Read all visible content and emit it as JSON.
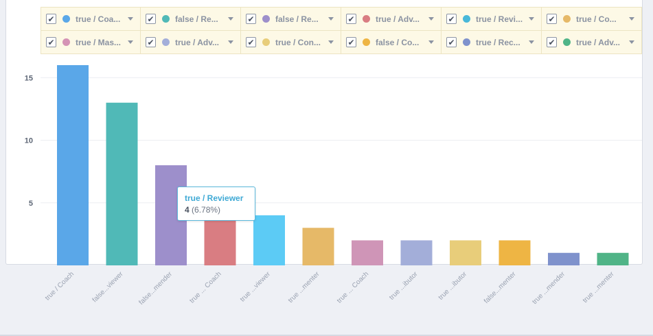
{
  "legend": {
    "items": [
      {
        "label": "true / Coa...",
        "color": "#5aa7e8"
      },
      {
        "label": "false / Re...",
        "color": "#50b9b7"
      },
      {
        "label": "false / Re...",
        "color": "#9d8fcb"
      },
      {
        "label": "true / Adv...",
        "color": "#d97d82"
      },
      {
        "label": "true / Revi...",
        "color": "#48b8d9"
      },
      {
        "label": "true / Co...",
        "color": "#e6b968"
      },
      {
        "label": "true / Mas...",
        "color": "#d593b5"
      },
      {
        "label": "true / Adv...",
        "color": "#a3aed9"
      },
      {
        "label": "true / Con...",
        "color": "#e8cd7a"
      },
      {
        "label": "false / Co...",
        "color": "#eeb544"
      },
      {
        "label": "true / Rec...",
        "color": "#7f92cc"
      },
      {
        "label": "true / Adv...",
        "color": "#50b487"
      }
    ],
    "check_glyph": "✔"
  },
  "chart_data": {
    "type": "bar",
    "categories": [
      "true / Coach",
      "false...viewer",
      "false...mender",
      "true ... Coach",
      "true ...viewer",
      "true ...menter",
      "true ... Coach",
      "true ...ibutor",
      "true ...ibutor",
      "false...menter",
      "true ...mender",
      "true ...menter"
    ],
    "values": [
      16,
      13,
      8,
      4,
      4,
      3,
      2,
      2,
      2,
      2,
      1,
      1
    ],
    "colors": [
      "#5aa7e8",
      "#50b9b7",
      "#9d8fcb",
      "#d97d82",
      "#5ccbf5",
      "#e6b968",
      "#cf95b7",
      "#a3aed9",
      "#e8cd7a",
      "#eeb544",
      "#7f92cc",
      "#50b487"
    ],
    "yticks": [
      5,
      10,
      15
    ],
    "ylim": [
      0,
      16
    ],
    "grid": true
  },
  "tooltip": {
    "title": "true / Reviewer",
    "value": "4",
    "percent": "(6.78%)"
  }
}
